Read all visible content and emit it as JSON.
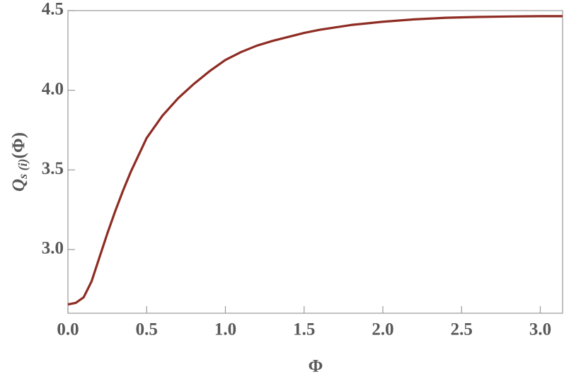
{
  "chart_data": {
    "type": "line",
    "xlabel": "Φ",
    "ylabel": {
      "main": "Q",
      "subscript": "s (i)",
      "arg": "(Φ)"
    },
    "xlim": [
      0,
      3.1416
    ],
    "ylim": [
      2.6,
      4.5
    ],
    "xticks": [
      {
        "value": 0,
        "label": "0.0"
      },
      0.5,
      {
        "value": 1,
        "label": "1.0"
      },
      1.5,
      {
        "value": 2,
        "label": "2.0"
      },
      2.5,
      {
        "value": 3,
        "label": "3.0"
      }
    ],
    "yticks": [
      {
        "value": 3,
        "label": "3.0"
      },
      3.5,
      {
        "value": 4,
        "label": "4.0"
      },
      4.5
    ],
    "x": [
      0,
      0.05,
      0.1,
      0.15,
      0.2,
      0.25,
      0.3,
      0.35,
      0.4,
      0.5,
      0.6,
      0.7,
      0.8,
      0.9,
      1.0,
      1.1,
      1.2,
      1.3,
      1.4,
      1.5,
      1.6,
      1.8,
      2.0,
      2.2,
      2.4,
      2.6,
      2.8,
      3.0,
      3.1416
    ],
    "series": [
      {
        "color": "#8e2c23",
        "values": [
          2.655,
          2.665,
          2.7,
          2.8,
          2.95,
          3.1,
          3.24,
          3.37,
          3.49,
          3.7,
          3.84,
          3.95,
          4.04,
          4.12,
          4.19,
          4.24,
          4.28,
          4.31,
          4.335,
          4.36,
          4.38,
          4.41,
          4.43,
          4.445,
          4.455,
          4.46,
          4.463,
          4.465,
          4.465
        ]
      }
    ]
  }
}
